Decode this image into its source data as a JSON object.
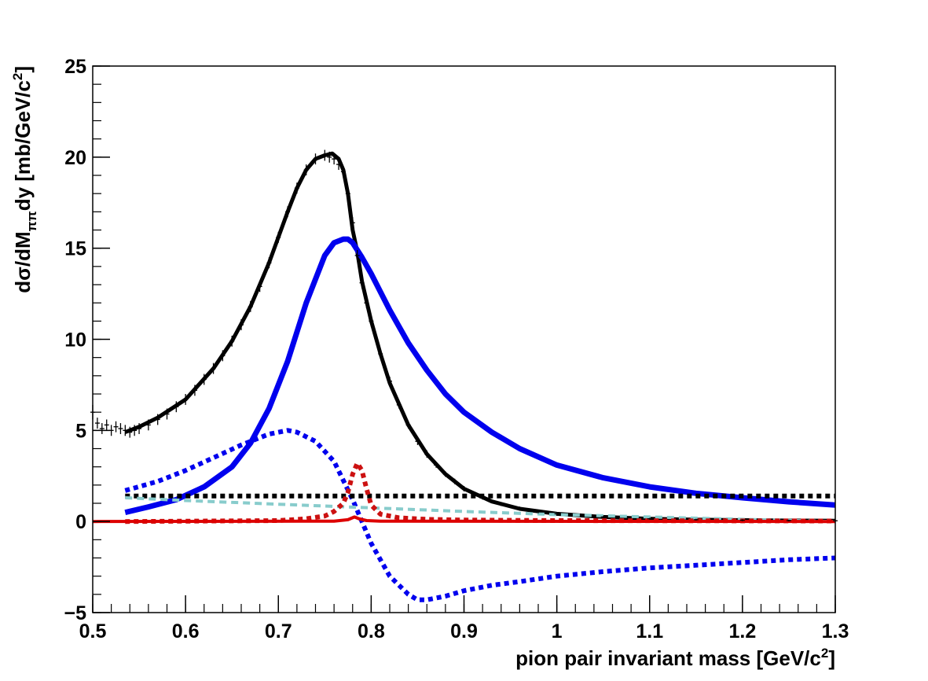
{
  "chart_data": {
    "type": "line",
    "title": "",
    "xlabel": "pion pair invariant mass [GeV/c",
    "xlabel_sup": "2",
    "xlabel_end": "]",
    "ylabel_parts": {
      "a": "d",
      "sigma": "σ",
      "b": "/dM",
      "sub": "ππ",
      "c": "dy [mb/GeV/c",
      "sup": "2",
      "d": "]"
    },
    "xlim": [
      0.5,
      1.3
    ],
    "ylim": [
      -5,
      25
    ],
    "x_ticks": [
      {
        "v": 0.5,
        "label": "0.5"
      },
      {
        "v": 0.6,
        "label": "0.6"
      },
      {
        "v": 0.7,
        "label": "0.7"
      },
      {
        "v": 0.8,
        "label": "0.8"
      },
      {
        "v": 0.9,
        "label": "0.9"
      },
      {
        "v": 1.0,
        "label": "1"
      },
      {
        "v": 1.1,
        "label": "1.1"
      },
      {
        "v": 1.2,
        "label": "1.2"
      },
      {
        "v": 1.3,
        "label": "1.3"
      }
    ],
    "y_ticks": [
      {
        "v": -5,
        "label": "−5"
      },
      {
        "v": 0,
        "label": "0"
      },
      {
        "v": 5,
        "label": "5"
      },
      {
        "v": 10,
        "label": "10"
      },
      {
        "v": 15,
        "label": "15"
      },
      {
        "v": 20,
        "label": "20"
      },
      {
        "v": 25,
        "label": "25"
      }
    ],
    "grid": false,
    "legend": "none",
    "data_points": {
      "color": "#000000",
      "x": [
        0.5,
        0.505,
        0.51,
        0.515,
        0.52,
        0.525,
        0.53,
        0.535,
        0.54,
        0.545,
        0.55,
        0.56,
        0.57,
        0.58,
        0.59,
        0.6,
        0.61,
        0.62,
        0.63,
        0.64,
        0.65,
        0.66,
        0.67,
        0.68,
        0.69,
        0.7,
        0.71,
        0.72,
        0.73,
        0.74,
        0.75,
        0.755,
        0.76,
        0.765,
        0.77,
        0.775,
        0.78,
        0.785,
        0.79,
        0.795,
        0.8,
        0.81,
        0.82,
        0.83,
        0.84,
        0.85,
        0.86,
        0.87,
        0.88,
        0.89,
        0.9,
        0.92,
        0.94,
        0.96,
        0.98,
        1.0,
        1.05,
        1.1,
        1.15,
        1.2,
        1.25,
        1.3
      ],
      "y": [
        6.0,
        5.4,
        5.1,
        5.3,
        5.0,
        5.2,
        5.1,
        5.0,
        4.9,
        5.0,
        5.1,
        5.3,
        5.6,
        5.9,
        6.3,
        6.7,
        7.2,
        7.8,
        8.4,
        9.1,
        9.9,
        10.8,
        11.8,
        12.9,
        14.2,
        15.6,
        17.0,
        18.3,
        19.3,
        19.9,
        20.1,
        20.0,
        19.9,
        19.6,
        19.2,
        18.0,
        16.4,
        14.6,
        13.1,
        12.0,
        11.0,
        9.2,
        7.7,
        6.4,
        5.3,
        4.4,
        3.7,
        3.1,
        2.6,
        2.2,
        1.8,
        1.3,
        0.95,
        0.72,
        0.55,
        0.42,
        0.25,
        0.15,
        0.1,
        0.07,
        0.05,
        0.04
      ],
      "err": [
        0.4,
        0.3,
        0.3,
        0.3,
        0.3,
        0.3,
        0.3,
        0.3,
        0.3,
        0.3,
        0.3,
        0.3,
        0.3,
        0.3,
        0.3,
        0.3,
        0.3,
        0.3,
        0.3,
        0.3,
        0.3,
        0.3,
        0.3,
        0.3,
        0.3,
        0.3,
        0.3,
        0.3,
        0.3,
        0.3,
        0.3,
        0.3,
        0.3,
        0.3,
        0.3,
        0.3,
        0.3,
        0.3,
        0.3,
        0.3,
        0.3,
        0.25,
        0.25,
        0.2,
        0.2,
        0.2,
        0.2,
        0.15,
        0.15,
        0.15,
        0.15,
        0.1,
        0.1,
        0.1,
        0.1,
        0.1,
        0.05,
        0.05,
        0.05,
        0.05,
        0.05,
        0.05
      ]
    },
    "series": [
      {
        "color": "#000000",
        "style": "solid",
        "width": 5,
        "x": [
          0.535,
          0.55,
          0.57,
          0.6,
          0.63,
          0.65,
          0.67,
          0.69,
          0.7,
          0.71,
          0.72,
          0.73,
          0.74,
          0.75,
          0.758,
          0.765,
          0.77,
          0.775,
          0.78,
          0.785,
          0.79,
          0.8,
          0.81,
          0.82,
          0.84,
          0.86,
          0.88,
          0.9,
          0.93,
          0.96,
          1.0,
          1.05,
          1.1,
          1.15,
          1.2,
          1.25,
          1.3
        ],
        "y": [
          4.9,
          5.2,
          5.7,
          6.7,
          8.4,
          9.9,
          11.8,
          14.2,
          15.6,
          17.0,
          18.3,
          19.3,
          19.9,
          20.1,
          20.2,
          19.9,
          19.3,
          18.0,
          16.0,
          14.8,
          13.2,
          11.0,
          9.2,
          7.6,
          5.3,
          3.7,
          2.6,
          1.8,
          1.1,
          0.7,
          0.42,
          0.25,
          0.15,
          0.1,
          0.07,
          0.05,
          0.04
        ]
      },
      {
        "color": "#0000ee",
        "style": "solid",
        "width": 7,
        "x": [
          0.535,
          0.56,
          0.59,
          0.62,
          0.65,
          0.67,
          0.69,
          0.71,
          0.73,
          0.75,
          0.76,
          0.77,
          0.775,
          0.78,
          0.79,
          0.8,
          0.82,
          0.84,
          0.86,
          0.88,
          0.9,
          0.93,
          0.96,
          1.0,
          1.05,
          1.1,
          1.15,
          1.2,
          1.25,
          1.3
        ],
        "y": [
          0.5,
          0.8,
          1.2,
          1.9,
          3.0,
          4.3,
          6.2,
          8.8,
          12.0,
          14.6,
          15.3,
          15.5,
          15.5,
          15.3,
          14.5,
          13.6,
          11.6,
          9.8,
          8.3,
          7.0,
          6.0,
          4.9,
          4.0,
          3.1,
          2.4,
          1.9,
          1.55,
          1.3,
          1.08,
          0.9
        ]
      },
      {
        "color": "#0000ee",
        "style": "dotted",
        "width": 6,
        "x": [
          0.535,
          0.57,
          0.6,
          0.63,
          0.66,
          0.69,
          0.71,
          0.72,
          0.74,
          0.76,
          0.78,
          0.8,
          0.82,
          0.84,
          0.85,
          0.86,
          0.88,
          0.9,
          0.93,
          0.96,
          1.0,
          1.05,
          1.1,
          1.15,
          1.2,
          1.25,
          1.3
        ],
        "y": [
          1.7,
          2.2,
          2.8,
          3.5,
          4.2,
          4.8,
          5.0,
          4.9,
          4.4,
          3.3,
          1.2,
          -1.2,
          -3.0,
          -4.0,
          -4.3,
          -4.3,
          -4.1,
          -3.8,
          -3.5,
          -3.3,
          -3.0,
          -2.75,
          -2.55,
          -2.4,
          -2.25,
          -2.1,
          -2.0
        ]
      },
      {
        "color": "#000000",
        "style": "dotted",
        "width": 6,
        "x": [
          0.535,
          1.3
        ],
        "y": [
          1.4,
          1.4
        ]
      },
      {
        "color": "#88cccc",
        "style": "dashed",
        "width": 4,
        "x": [
          0.535,
          0.6,
          0.7,
          0.8,
          0.9,
          1.0,
          1.1,
          1.2,
          1.3
        ],
        "y": [
          1.3,
          1.15,
          0.95,
          0.75,
          0.55,
          0.38,
          0.25,
          0.12,
          0.0
        ]
      },
      {
        "color": "#cc1111",
        "style": "dotted",
        "width": 6,
        "x": [
          0.535,
          0.7,
          0.73,
          0.75,
          0.76,
          0.77,
          0.775,
          0.78,
          0.785,
          0.79,
          0.795,
          0.8,
          0.81,
          0.83,
          0.86,
          0.9,
          1.0,
          1.3
        ],
        "y": [
          0.0,
          0.05,
          0.15,
          0.3,
          0.55,
          1.0,
          1.6,
          2.6,
          3.2,
          2.8,
          1.8,
          0.9,
          0.4,
          0.2,
          0.12,
          0.08,
          0.05,
          0.03
        ]
      },
      {
        "color": "#dd0000",
        "style": "solid",
        "width": 4,
        "x": [
          0.5,
          0.76,
          0.775,
          0.782,
          0.787,
          0.795,
          0.81,
          1.3
        ],
        "y": [
          0.0,
          0.02,
          0.1,
          0.25,
          0.15,
          0.05,
          0.02,
          0.0
        ]
      }
    ]
  }
}
